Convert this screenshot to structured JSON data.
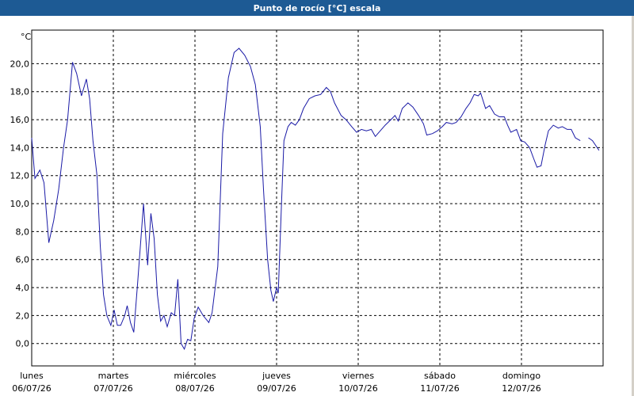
{
  "chart_data": {
    "type": "line",
    "title": "Punto de rocío [°C] escala",
    "y_label": "°C",
    "color": "#1a1aa6",
    "grid": true,
    "xlim": [
      0,
      7
    ],
    "xticks": [
      {
        "value": 0,
        "label": "lunes",
        "date": "06/07/26"
      },
      {
        "value": 1,
        "label": "martes",
        "date": "07/07/26"
      },
      {
        "value": 2,
        "label": "miércoles",
        "date": "08/07/26"
      },
      {
        "value": 3,
        "label": "jueves",
        "date": "09/07/26"
      },
      {
        "value": 4,
        "label": "viernes",
        "date": "10/07/26"
      },
      {
        "value": 5,
        "label": "sábado",
        "date": "11/07/26"
      },
      {
        "value": 6,
        "label": "domingo",
        "date": "12/07/26"
      }
    ],
    "ylim": [
      -1.6,
      22.4
    ],
    "yticks": [
      {
        "value": 0,
        "label": "0,0"
      },
      {
        "value": 2,
        "label": "2,0"
      },
      {
        "value": 4,
        "label": "4,0"
      },
      {
        "value": 6,
        "label": "6,0"
      },
      {
        "value": 8,
        "label": "8,0"
      },
      {
        "value": 10,
        "label": "10,0"
      },
      {
        "value": 12,
        "label": "12,0"
      },
      {
        "value": 14,
        "label": "14,0"
      },
      {
        "value": 16,
        "label": "16,0"
      },
      {
        "value": 18,
        "label": "18,0"
      },
      {
        "value": 20,
        "label": "20,0"
      }
    ],
    "x": [
      0,
      0.04,
      0.1,
      0.15,
      0.21,
      0.27,
      0.33,
      0.39,
      0.44,
      0.5,
      0.55,
      0.61,
      0.67,
      0.71,
      0.75,
      0.8,
      0.84,
      0.88,
      0.92,
      0.97,
      1.01,
      1.05,
      1.09,
      1.14,
      1.17,
      1.21,
      1.25,
      1.3,
      1.37,
      1.42,
      1.46,
      1.5,
      1.54,
      1.58,
      1.62,
      1.66,
      1.71,
      1.75,
      1.79,
      1.83,
      1.87,
      1.91,
      1.95,
      1.99,
      2.04,
      2.1,
      2.17,
      2.21,
      2.28,
      2.34,
      2.41,
      2.48,
      2.54,
      2.61,
      2.68,
      2.74,
      2.8,
      2.84,
      2.89,
      2.93,
      2.96,
      3.0,
      3.02,
      3.06,
      3.09,
      3.14,
      3.18,
      3.23,
      3.28,
      3.33,
      3.4,
      3.47,
      3.54,
      3.61,
      3.66,
      3.71,
      3.79,
      3.85,
      3.92,
      3.98,
      4.04,
      4.1,
      4.16,
      4.21,
      4.27,
      4.33,
      4.4,
      4.45,
      4.49,
      4.54,
      4.61,
      4.67,
      4.74,
      4.8,
      4.84,
      4.91,
      4.97,
      5.03,
      5.08,
      5.15,
      5.2,
      5.26,
      5.32,
      5.37,
      5.42,
      5.47,
      5.5,
      5.56,
      5.61,
      5.67,
      5.73,
      5.79,
      5.83,
      5.87,
      5.94,
      5.99,
      6.04,
      6.1,
      6.15,
      6.19,
      6.24,
      6.29,
      6.33,
      6.39,
      6.45,
      6.5,
      6.56,
      6.61,
      6.66,
      6.72,
      6.77,
      6.82,
      6.87,
      6.95
    ],
    "values": [
      14.7,
      11.8,
      12.4,
      11.5,
      7.2,
      8.8,
      11.0,
      14.0,
      16.0,
      20.1,
      19.3,
      17.7,
      18.9,
      17.5,
      14.5,
      12.0,
      7.0,
      3.5,
      2.0,
      1.3,
      2.4,
      1.3,
      1.3,
      2.0,
      2.7,
      1.5,
      0.8,
      4.5,
      10.0,
      5.6,
      9.3,
      7.5,
      3.5,
      1.6,
      2.0,
      1.2,
      2.2,
      2.0,
      4.6,
      0.0,
      -0.4,
      0.3,
      0.2,
      1.8,
      2.6,
      2.0,
      1.5,
      2.2,
      5.5,
      15.0,
      19.0,
      20.8,
      21.1,
      20.6,
      19.8,
      18.5,
      15.5,
      11.0,
      6.0,
      3.8,
      3.0,
      4.0,
      3.6,
      10.0,
      14.5,
      15.5,
      15.8,
      15.6,
      16.0,
      16.8,
      17.5,
      17.7,
      17.8,
      18.3,
      18.0,
      17.2,
      16.3,
      16.0,
      15.5,
      15.1,
      15.3,
      15.2,
      15.3,
      14.8,
      15.2,
      15.6,
      16.0,
      16.3,
      15.9,
      16.8,
      17.2,
      16.9,
      16.3,
      15.7,
      14.9,
      15.0,
      15.2,
      15.5,
      15.8,
      15.7,
      15.8,
      16.2,
      16.8,
      17.2,
      17.8,
      17.7,
      17.9,
      16.8,
      17.0,
      16.4,
      16.2,
      16.2,
      15.6,
      15.1,
      15.3,
      14.5,
      14.4,
      14.0,
      13.2,
      12.6,
      12.7,
      14.2,
      15.2,
      15.6,
      15.4,
      15.5,
      15.3,
      15.3,
      14.7,
      14.5,
      null,
      14.7,
      14.5,
      13.8
    ]
  }
}
